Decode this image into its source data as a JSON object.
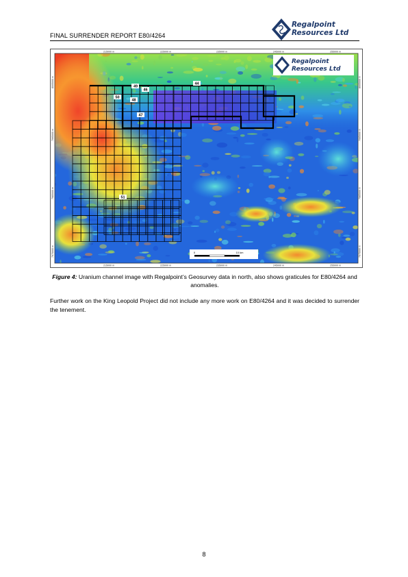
{
  "header": {
    "title": "FINAL SURRENDER REPORT  E80/4264",
    "logo_line1": "Regalpoint",
    "logo_line2": "Resources Ltd"
  },
  "map": {
    "top_ticks": [
      "215000 m",
      "225000 m",
      "235000 m",
      "245000 m",
      "255000 m"
    ],
    "bottom_ticks": [
      "215000 m",
      "225000 m",
      "235000 m",
      "245000 m",
      "255000 m"
    ],
    "left_ticks": [
      "8005000 m",
      "7995000 m",
      "7985000 m",
      "7975000 m"
    ],
    "right_ticks": [
      "8005000 m",
      "7995000 m",
      "7985000 m",
      "7975000 m"
    ],
    "anomaly_labels": [
      "49",
      "46",
      "44",
      "50",
      "48",
      "47",
      "51"
    ],
    "scale_start": "0",
    "scale_end": "10 km",
    "logo_line1": "Regalpoint",
    "logo_line2": "Resources Ltd"
  },
  "caption": {
    "label": "Figure 4:",
    "text": " Uranium channel image with Regalpoint’s Geosurvey data in north, also shows graticules for E80/4264 and anomalies."
  },
  "body": {
    "paragraph": "Further work on the King Leopold Project did not include any more work on E80/4264 and it was decided to surrender the tenement."
  },
  "footer": {
    "page_number": "8"
  },
  "colors": {
    "logo_blue": "#1f3a6b",
    "grid_line": "#000000"
  }
}
